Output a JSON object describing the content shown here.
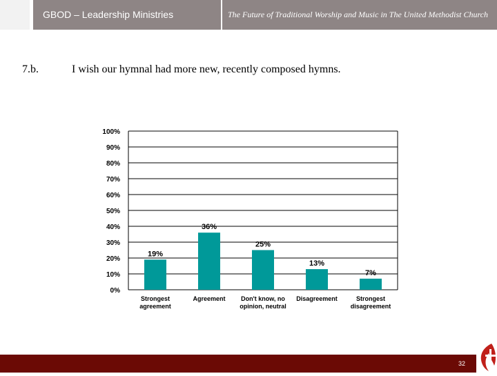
{
  "header": {
    "org_name": "GBOD – Leadership Ministries",
    "doc_title": "The Future of Traditional Worship and Music in The United Methodist Church"
  },
  "question": {
    "number": "7.b.",
    "text": "I wish our hymnal had more new, recently composed hymns."
  },
  "chart_data": {
    "type": "bar",
    "categories": [
      [
        "Strongest",
        "agreement"
      ],
      [
        "Agreement"
      ],
      [
        "Don't know, no",
        "opinion, neutral"
      ],
      [
        "Disagreement"
      ],
      [
        "Strongest",
        "disagreement"
      ]
    ],
    "values": [
      19,
      36,
      25,
      13,
      7
    ],
    "data_labels": [
      "19%",
      "36%",
      "25%",
      "13%",
      "7%"
    ],
    "ylim": [
      0,
      100
    ],
    "yticks": [
      "0%",
      "10%",
      "20%",
      "30%",
      "40%",
      "50%",
      "60%",
      "70%",
      "80%",
      "90%",
      "100%"
    ],
    "grid": true,
    "bar_color": "#009999"
  },
  "footer": {
    "page_number": "32"
  },
  "logo_icon": "cross-and-flame-icon",
  "colors": {
    "header_bg": "#8e8585",
    "footer_bg": "#6b0a05",
    "logo_red": "#c0201a"
  }
}
